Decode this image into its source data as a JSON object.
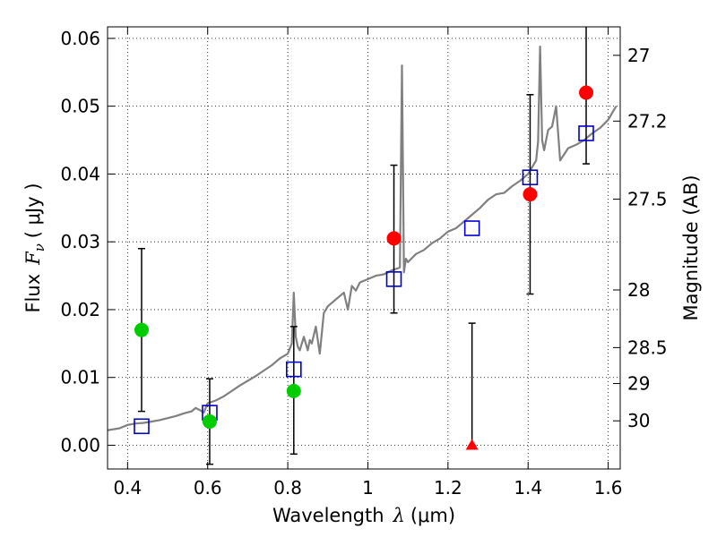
{
  "chart_data": {
    "type": "scatter",
    "xlabel_prefix": "Wavelength",
    "xlabel_symbol": "λ",
    "xlabel_unit": "(μm)",
    "ylabel_prefix": "Flux",
    "ylabel_symbol": "F",
    "ylabel_subscript": "ν",
    "ylabel_unit": "( μJy )",
    "y2label": "Magnitude (AB)",
    "xlim": [
      0.35,
      1.63
    ],
    "ylim": [
      -0.0035,
      0.0617
    ],
    "xticks": [
      0.4,
      0.6,
      0.8,
      1.0,
      1.2,
      1.4,
      1.6
    ],
    "xtick_labels": [
      "0.4",
      "0.6",
      "0.8",
      "1",
      "1.2",
      "1.4",
      "1.6"
    ],
    "yticks": [
      0.0,
      0.01,
      0.02,
      0.03,
      0.04,
      0.05,
      0.06
    ],
    "ytick_labels": [
      "0.00",
      "0.01",
      "0.02",
      "0.03",
      "0.04",
      "0.05",
      "0.06"
    ],
    "y2ticks": [
      {
        "label": "27",
        "flux": 0.0575
      },
      {
        "label": "27.2",
        "flux": 0.0478
      },
      {
        "label": "27.5",
        "flux": 0.0363
      },
      {
        "label": "28",
        "flux": 0.0229
      },
      {
        "label": "28.5",
        "flux": 0.0144
      },
      {
        "label": "29",
        "flux": 0.0091
      },
      {
        "label": "30",
        "flux": 0.0036
      }
    ],
    "grid": true,
    "series": [
      {
        "name": "model_spectrum",
        "kind": "line",
        "color": "#808080",
        "x": [
          0.35,
          0.38,
          0.4,
          0.42,
          0.44,
          0.46,
          0.48,
          0.5,
          0.52,
          0.54,
          0.56,
          0.57,
          0.58,
          0.59,
          0.6,
          0.62,
          0.64,
          0.66,
          0.68,
          0.7,
          0.72,
          0.74,
          0.76,
          0.78,
          0.8,
          0.81,
          0.815,
          0.82,
          0.825,
          0.83,
          0.84,
          0.85,
          0.855,
          0.86,
          0.87,
          0.88,
          0.89,
          0.9,
          0.92,
          0.94,
          0.95,
          0.96,
          0.97,
          0.98,
          1.0,
          1.02,
          1.04,
          1.06,
          1.07,
          1.08,
          1.085,
          1.09,
          1.095,
          1.1,
          1.12,
          1.14,
          1.16,
          1.18,
          1.2,
          1.22,
          1.24,
          1.26,
          1.28,
          1.3,
          1.32,
          1.34,
          1.36,
          1.38,
          1.4,
          1.42,
          1.425,
          1.43,
          1.435,
          1.44,
          1.45,
          1.46,
          1.47,
          1.48,
          1.5,
          1.52,
          1.54,
          1.56,
          1.58,
          1.6,
          1.62
        ],
        "y": [
          0.0022,
          0.0025,
          0.003,
          0.0032,
          0.0033,
          0.0035,
          0.0037,
          0.004,
          0.0043,
          0.0047,
          0.005,
          0.0055,
          0.0052,
          0.0048,
          0.0062,
          0.0066,
          0.0072,
          0.008,
          0.0088,
          0.0095,
          0.0102,
          0.011,
          0.0118,
          0.0128,
          0.0135,
          0.015,
          0.0225,
          0.016,
          0.0145,
          0.014,
          0.016,
          0.014,
          0.0155,
          0.015,
          0.0175,
          0.0135,
          0.0195,
          0.0205,
          0.0215,
          0.0225,
          0.02,
          0.0235,
          0.0228,
          0.024,
          0.0245,
          0.025,
          0.0252,
          0.0258,
          0.026,
          0.0262,
          0.056,
          0.0255,
          0.0275,
          0.027,
          0.0282,
          0.0288,
          0.0298,
          0.0305,
          0.0315,
          0.032,
          0.033,
          0.034,
          0.035,
          0.0362,
          0.037,
          0.0372,
          0.0382,
          0.039,
          0.04,
          0.042,
          0.0448,
          0.0588,
          0.045,
          0.0435,
          0.0465,
          0.047,
          0.05,
          0.042,
          0.0438,
          0.0443,
          0.045,
          0.046,
          0.0468,
          0.048,
          0.05
        ]
      },
      {
        "name": "model_photometry",
        "kind": "open_square",
        "color": "#0000cc",
        "x": [
          0.435,
          0.605,
          0.815,
          1.065,
          1.26,
          1.405,
          1.545
        ],
        "y": [
          0.0028,
          0.0048,
          0.0112,
          0.0245,
          0.032,
          0.0395,
          0.046
        ]
      },
      {
        "name": "observed_green",
        "kind": "filled_circle",
        "color": "#00cc00",
        "x": [
          0.435,
          0.605,
          0.815
        ],
        "y": [
          0.017,
          0.0035,
          0.008
        ],
        "yerr_low": [
          0.005,
          -0.0028,
          -0.0013
        ],
        "yerr_high": [
          0.029,
          0.0098,
          0.0175
        ]
      },
      {
        "name": "observed_red",
        "kind": "filled_circle",
        "color": "#ff0000",
        "x": [
          1.065,
          1.405,
          1.545
        ],
        "y": [
          0.0305,
          0.037,
          0.052
        ],
        "yerr_low": [
          0.0195,
          0.0223,
          0.0415
        ],
        "yerr_high": [
          0.0413,
          0.0517,
          0.0625
        ]
      },
      {
        "name": "upper_limit",
        "kind": "triangle",
        "color": "#ff0000",
        "x": [
          1.26
        ],
        "y": [
          0.0
        ],
        "yerr_low": [
          0.0
        ],
        "yerr_high": [
          0.018
        ]
      }
    ]
  }
}
